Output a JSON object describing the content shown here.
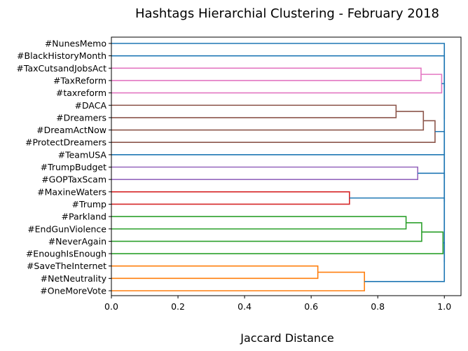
{
  "chart_data": {
    "type": "dendrogram",
    "title": "Hashtags Hierarchial Clustering - February 2018",
    "xlabel": "Jaccard Distance",
    "ylabel": "",
    "xlim": [
      0,
      1.05
    ],
    "xticks": [
      "0.0",
      "0.2",
      "0.4",
      "0.6",
      "0.8",
      "1.0"
    ],
    "xtick_values": [
      0,
      0.2,
      0.4,
      0.6,
      0.8,
      1.0
    ],
    "orientation": "left",
    "labels": [
      "#NunesMemo",
      "#BlackHistoryMonth",
      "#TaxCutsandJobsAct",
      "#TaxReform",
      "#taxreform",
      "#DACA",
      "#Dreamers",
      "#DreamActNow",
      "#ProtectDreamers",
      "#TeamUSA",
      "#TrumpBudget",
      "#GOPTaxScam",
      "#MaxineWaters",
      "#Trump",
      "#Parkland",
      "#EndGunViolence",
      "#NeverAgain",
      "#EnoughIsEnough",
      "#SaveTheInternet",
      "#NetNeutrality",
      "#OneMoreVote"
    ],
    "colors": {
      "blue": "#1f77b4",
      "orange": "#ff7f0e",
      "green": "#2ca02c",
      "red": "#d62728",
      "purple": "#9467bd",
      "brown": "#8c564b",
      "pink": "#e377c2"
    },
    "merges": [
      {
        "id": "m_saveinternet_netneutrality",
        "left": "#SaveTheInternet",
        "right": "#NetNeutrality",
        "distance": 0.62,
        "color": "orange"
      },
      {
        "id": "m_netgroup",
        "left": "m_saveinternet_netneutrality",
        "right": "#OneMoreVote",
        "distance": 0.76,
        "color": "orange"
      },
      {
        "id": "m_maxine_trump",
        "left": "#MaxineWaters",
        "right": "#Trump",
        "distance": 0.715,
        "color": "red"
      },
      {
        "id": "m_daca_dreamers",
        "left": "#DACA",
        "right": "#Dreamers",
        "distance": 0.855,
        "color": "brown"
      },
      {
        "id": "m_parkland_endgun",
        "left": "#Parkland",
        "right": "#EndGunViolence",
        "distance": 0.885,
        "color": "green"
      },
      {
        "id": "m_trumpbudget_gop",
        "left": "#TrumpBudget",
        "right": "#GOPTaxScam",
        "distance": 0.92,
        "color": "purple"
      },
      {
        "id": "m_taxcuts_taxreform",
        "left": "#TaxCutsandJobsAct",
        "right": "#TaxReform",
        "distance": 0.93,
        "color": "pink"
      },
      {
        "id": "m_gun_neveragain",
        "left": "m_parkland_endgun",
        "right": "#NeverAgain",
        "distance": 0.932,
        "color": "green"
      },
      {
        "id": "m_dreamact",
        "left": "m_daca_dreamers",
        "right": "#DreamActNow",
        "distance": 0.937,
        "color": "brown"
      },
      {
        "id": "m_protectdreamers",
        "left": "m_dreamact",
        "right": "#ProtectDreamers",
        "distance": 0.972,
        "color": "brown"
      },
      {
        "id": "m_taxreform_lower",
        "left": "m_taxcuts_taxreform",
        "right": "#taxreform",
        "distance": 0.992,
        "color": "pink"
      },
      {
        "id": "m_enough",
        "left": "m_gun_neveragain",
        "right": "#EnoughIsEnough",
        "distance": 0.996,
        "color": "green"
      },
      {
        "id": "m_root_1",
        "left": "m_enough",
        "right": "m_netgroup",
        "distance": 1.0,
        "color": "blue"
      },
      {
        "id": "m_root_2",
        "left": "m_maxine_trump",
        "right": "m_root_1",
        "distance": 1.0,
        "color": "blue"
      },
      {
        "id": "m_root_3",
        "left": "m_trumpbudget_gop",
        "right": "m_root_2",
        "distance": 1.0,
        "color": "blue"
      },
      {
        "id": "m_root_4",
        "left": "#TeamUSA",
        "right": "m_root_3",
        "distance": 1.0,
        "color": "blue"
      },
      {
        "id": "m_root_5",
        "left": "m_protectdreamers",
        "right": "m_root_4",
        "distance": 1.0,
        "color": "blue"
      },
      {
        "id": "m_root_6",
        "left": "m_taxreform_lower",
        "right": "m_root_5",
        "distance": 1.0,
        "color": "blue"
      },
      {
        "id": "m_root_7",
        "left": "#BlackHistoryMonth",
        "right": "m_root_6",
        "distance": 1.0,
        "color": "blue"
      },
      {
        "id": "m_root_8",
        "left": "#NunesMemo",
        "right": "m_root_7",
        "distance": 1.0,
        "color": "blue"
      }
    ],
    "grid": false,
    "legend": "none"
  }
}
